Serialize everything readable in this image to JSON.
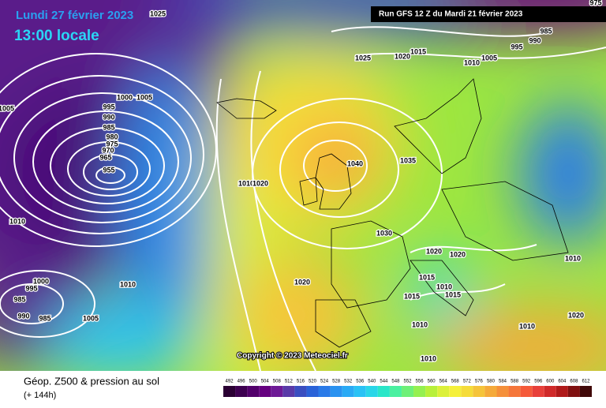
{
  "header": {
    "date": "Lundi 27 février 2023",
    "time": "13:00 locale",
    "run": "Run GFS 12 Z du Mardi 21 février 2023"
  },
  "copyright": "Copyright © 2023 Meteociel.fr",
  "isobar_labels": [
    "1025",
    "1025",
    "1020",
    "1015",
    "1010",
    "1005",
    "995",
    "990",
    "985",
    "975",
    "1000",
    "1005",
    "1005",
    "995",
    "990",
    "985",
    "980",
    "975",
    "970",
    "965",
    "955",
    "1010",
    "1000",
    "995",
    "985",
    "990",
    "985",
    "1005",
    "1010",
    "1010",
    "1020",
    "1040",
    "1035",
    "1030",
    "1020",
    "1020",
    "1020",
    "1015",
    "1010",
    "1010",
    "1010",
    "1015",
    "1015",
    "1020",
    "1010",
    "1010"
  ],
  "legend": {
    "title": "Géop. Z500 & pression au sol",
    "subtitle": "(+ 144h)",
    "values": [
      492,
      496,
      500,
      504,
      508,
      512,
      516,
      520,
      524,
      528,
      532,
      536,
      540,
      544,
      548,
      552,
      556,
      560,
      564,
      568,
      572,
      576,
      580,
      584,
      588,
      592,
      596,
      600,
      604,
      608,
      612
    ],
    "colors": [
      "#2a0033",
      "#3d0050",
      "#52006b",
      "#660080",
      "#6e1a96",
      "#5a3aa8",
      "#3a4ec0",
      "#2a62d8",
      "#2a7ae8",
      "#2a92f0",
      "#2aaaf5",
      "#2ac2f5",
      "#2ad6e8",
      "#2ae6c8",
      "#4af0a0",
      "#6ef078",
      "#94f050",
      "#b8f03a",
      "#dcf03a",
      "#f5f03a",
      "#f5dc3a",
      "#f5c43a",
      "#f5aa3a",
      "#f5903a",
      "#f5763a",
      "#f55a3a",
      "#e8403a",
      "#d02a2a",
      "#b01a1a",
      "#801010",
      "#400808"
    ]
  }
}
